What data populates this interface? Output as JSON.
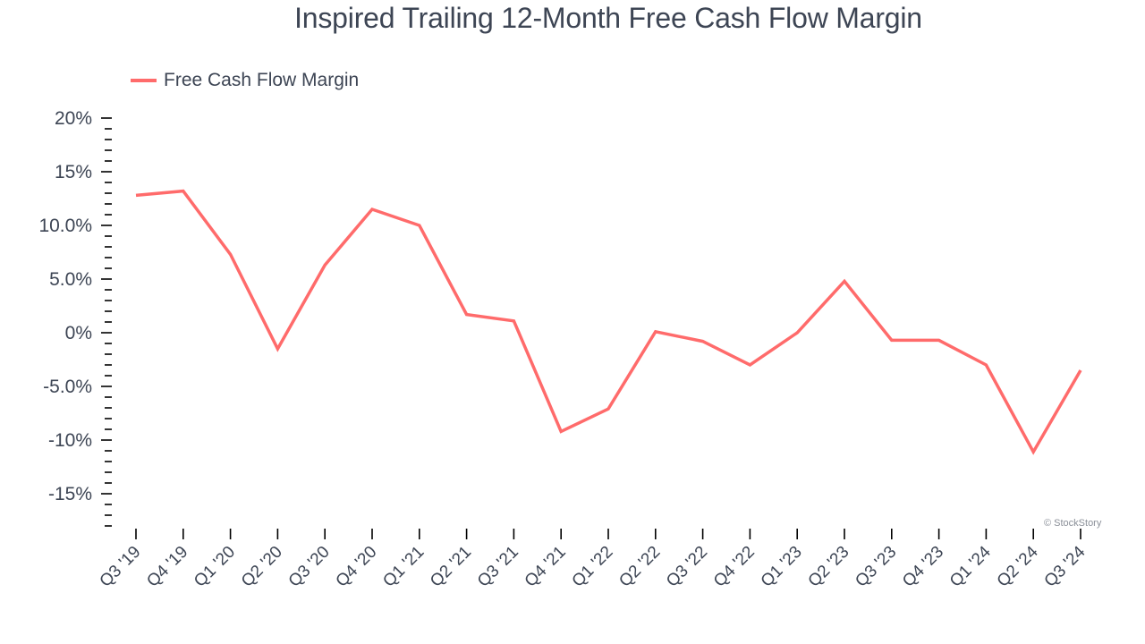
{
  "title": "Inspired Trailing 12-Month Free Cash Flow Margin",
  "legend": {
    "label": "Free Cash Flow Margin",
    "color": "#ff6b6b"
  },
  "watermark": "© StockStory",
  "colors": {
    "line": "#ff6b6b",
    "text": "#3d4554",
    "axis": "#000000"
  },
  "chart_data": {
    "type": "line",
    "title": "Inspired Trailing 12-Month Free Cash Flow Margin",
    "xlabel": "",
    "ylabel": "",
    "ylim": [
      -18,
      20
    ],
    "grid": false,
    "legend_position": "top-left",
    "y_ticks": [
      20,
      15,
      10,
      5,
      0,
      -5,
      -10,
      -15
    ],
    "y_tick_labels": [
      "20%",
      "15%",
      "10.0%",
      "5.0%",
      "0%",
      "-5.0%",
      "-10%",
      "-15%"
    ],
    "categories": [
      "Q3 '19",
      "Q4 '19",
      "Q1 '20",
      "Q2 '20",
      "Q3 '20",
      "Q4 '20",
      "Q1 '21",
      "Q2 '21",
      "Q3 '21",
      "Q4 '21",
      "Q1 '22",
      "Q2 '22",
      "Q3 '22",
      "Q4 '22",
      "Q1 '23",
      "Q2 '23",
      "Q3 '23",
      "Q4 '23",
      "Q1 '24",
      "Q2 '24",
      "Q3 '24"
    ],
    "series": [
      {
        "name": "Free Cash Flow Margin",
        "color": "#ff6b6b",
        "values": [
          12.8,
          13.2,
          7.3,
          -1.5,
          6.3,
          11.5,
          10.0,
          1.7,
          1.1,
          -9.2,
          -7.1,
          0.1,
          -0.8,
          -3.0,
          0.0,
          4.8,
          -0.7,
          -0.7,
          -3.0,
          -11.1,
          -3.5
        ]
      }
    ]
  }
}
